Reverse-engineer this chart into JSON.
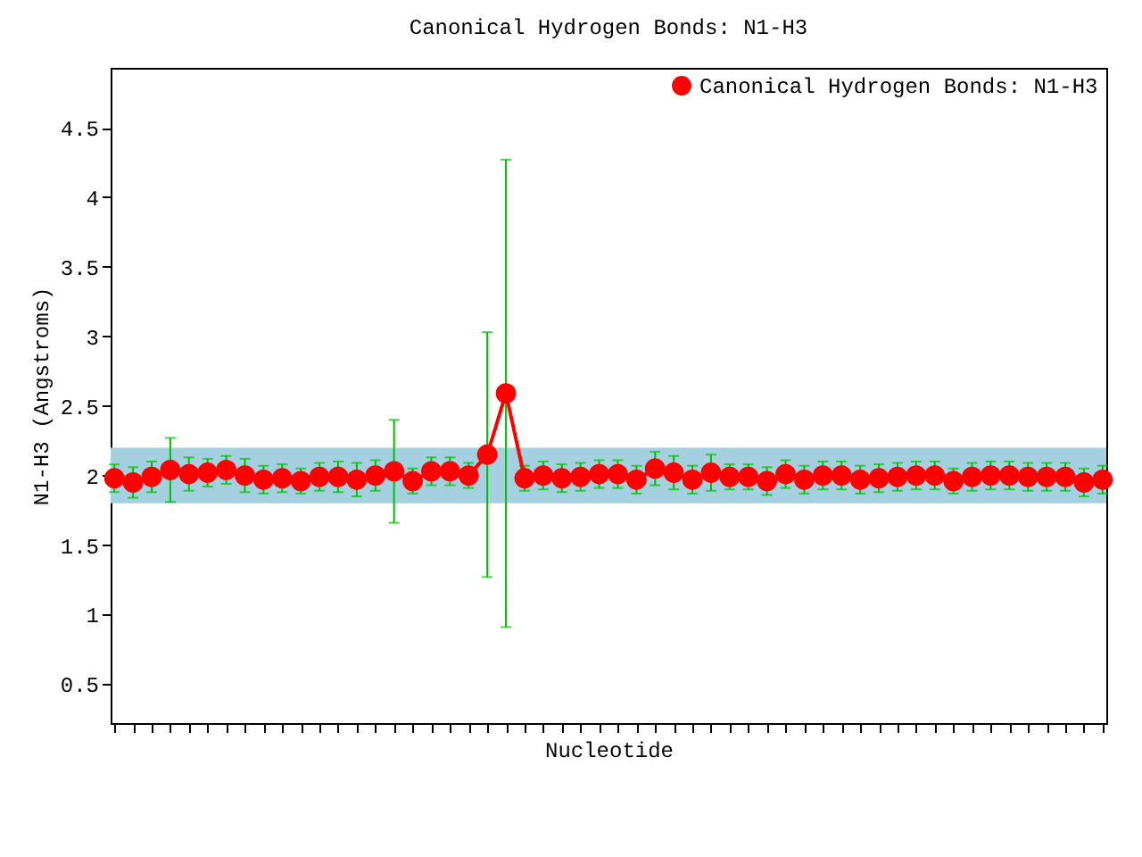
{
  "chart_data": {
    "type": "line",
    "title": "Canonical Hydrogen Bonds: N1-H3",
    "xlabel": "Nucleotide",
    "ylabel": "N1-H3 (Angstroms)",
    "ylim": [
      0.22,
      4.93
    ],
    "yticks": [
      0.5,
      1,
      1.5,
      2,
      2.5,
      3,
      3.5,
      4,
      4.5
    ],
    "categories": [
      null,
      null,
      null,
      null,
      null,
      null,
      null,
      null,
      null,
      null,
      null,
      null,
      null,
      null,
      null,
      null,
      null,
      null,
      null,
      null,
      null,
      null,
      null,
      null,
      null,
      null,
      null,
      null,
      null,
      null,
      null,
      null,
      null,
      null,
      null,
      null,
      null,
      null,
      null,
      null,
      null,
      null,
      null,
      null,
      null,
      null,
      null,
      null,
      null,
      null,
      null,
      null,
      null,
      null
    ],
    "tick_labels": "y",
    "grid": false,
    "legend": "top right",
    "marker": "circle",
    "line_style": "solid",
    "series": [
      {
        "name": "Canonical Hydrogen Bonds: N1-H3",
        "color": "#ff0000",
        "values": [
          1.98,
          1.95,
          1.99,
          2.04,
          2.01,
          2.02,
          2.04,
          2.0,
          1.97,
          1.98,
          1.96,
          1.99,
          1.99,
          1.97,
          2.0,
          2.03,
          1.96,
          2.03,
          2.03,
          2.0,
          2.15,
          2.59,
          1.98,
          2.0,
          1.98,
          1.99,
          2.01,
          2.01,
          1.97,
          2.05,
          2.02,
          1.97,
          2.02,
          1.99,
          1.99,
          1.96,
          2.01,
          1.97,
          2.0,
          2.0,
          1.97,
          1.98,
          1.99,
          2.0,
          2.0,
          1.96,
          1.99,
          2.0,
          2.0,
          1.99,
          1.99,
          1.99,
          1.95,
          1.97
        ],
        "errors": [
          0.1,
          0.11,
          0.11,
          0.23,
          0.12,
          0.1,
          0.1,
          0.12,
          0.1,
          0.1,
          0.09,
          0.1,
          0.11,
          0.12,
          0.11,
          0.37,
          0.09,
          0.1,
          0.1,
          0.09,
          0.88,
          1.68,
          0.09,
          0.1,
          0.1,
          0.1,
          0.1,
          0.1,
          0.1,
          0.12,
          0.12,
          0.1,
          0.13,
          0.09,
          0.09,
          0.1,
          0.1,
          0.1,
          0.1,
          0.1,
          0.1,
          0.1,
          0.1,
          0.1,
          0.1,
          0.09,
          0.1,
          0.1,
          0.1,
          0.1,
          0.1,
          0.1,
          0.1,
          0.1
        ]
      }
    ],
    "bands": [
      {
        "axis": "y",
        "from": 1.8,
        "to": 2.2,
        "color": "#a4d0df"
      }
    ]
  }
}
